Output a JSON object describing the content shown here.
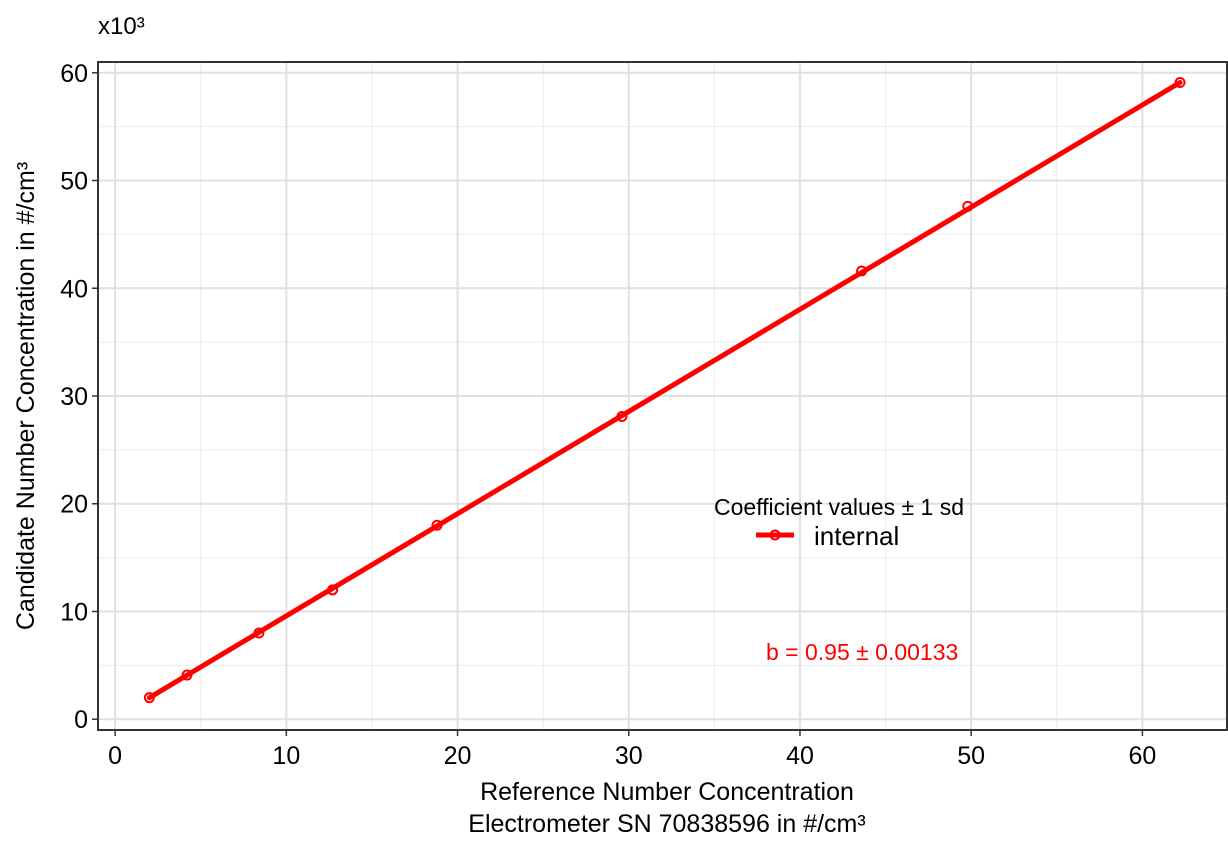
{
  "chart_data": {
    "type": "scatter",
    "title": "",
    "xlabel": [
      "Reference Number Concentration",
      "Electrometer SN 70838596 in #/cm³"
    ],
    "ylabel": "Candidate Number Concentration in #/cm³",
    "y_multiplier_label": "x10³",
    "xlim": [
      -1.0,
      65.0
    ],
    "ylim": [
      -1.0,
      61.0
    ],
    "x_ticks": [
      0,
      10,
      20,
      30,
      40,
      50,
      60
    ],
    "y_ticks": [
      0,
      10,
      20,
      30,
      40,
      50,
      60
    ],
    "grid": true,
    "series": [
      {
        "name": "internal",
        "color": "#ff0000",
        "points": [
          {
            "x": 2.0,
            "y": 2.0
          },
          {
            "x": 4.2,
            "y": 4.1
          },
          {
            "x": 8.4,
            "y": 8.0
          },
          {
            "x": 12.7,
            "y": 12.0
          },
          {
            "x": 18.8,
            "y": 18.0
          },
          {
            "x": 29.6,
            "y": 28.1
          },
          {
            "x": 43.6,
            "y": 41.6
          },
          {
            "x": 49.8,
            "y": 47.6
          },
          {
            "x": 62.2,
            "y": 59.1
          }
        ],
        "fit_line": {
          "x": [
            2.0,
            62.2
          ],
          "y": [
            2.0,
            59.1
          ]
        }
      }
    ],
    "legend": {
      "title": "Coefficient values ± 1 sd",
      "placement": "center-right"
    },
    "annotation": "b = 0.95 ± 0.00133"
  }
}
